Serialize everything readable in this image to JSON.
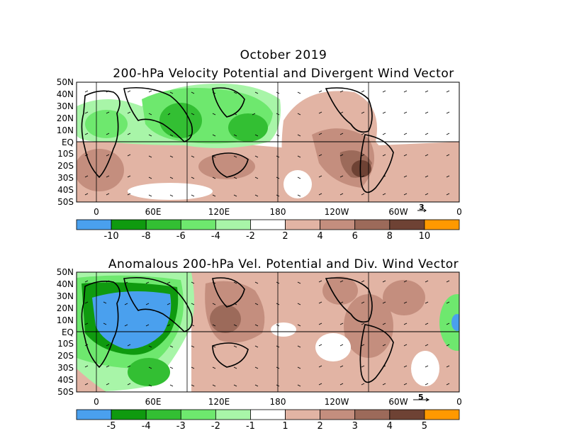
{
  "header": {
    "title": "October 2019"
  },
  "panels": [
    {
      "title": "200-hPa Velocity Potential and Divergent Wind Vector",
      "lat_labels": [
        "50N",
        "40N",
        "30N",
        "20N",
        "10N",
        "EQ",
        "10S",
        "20S",
        "30S",
        "40S",
        "50S"
      ],
      "lon_labels": [
        "0",
        "60E",
        "120E",
        "180",
        "120W",
        "60W",
        "0"
      ],
      "vector_scale": "3",
      "colorbar": {
        "labels": [
          "-10",
          "-8",
          "-6",
          "-4",
          "-2",
          "2",
          "4",
          "6",
          "8",
          "10"
        ],
        "colors": [
          "#4aa0ee",
          "#0f9a0f",
          "#33bf33",
          "#6ee86e",
          "#a8f5a8",
          "#ffffff",
          "#e2b4a4",
          "#c48e7e",
          "#9c6a5a",
          "#6e4234",
          "#ff9900"
        ]
      }
    },
    {
      "title": "Anomalous 200-hPa Vel. Potential and Div. Wind Vector",
      "lat_labels": [
        "50N",
        "40N",
        "30N",
        "20N",
        "10N",
        "EQ",
        "10S",
        "20S",
        "30S",
        "40S",
        "50S"
      ],
      "lon_labels": [
        "0",
        "60E",
        "120E",
        "180",
        "120W",
        "60W",
        "0"
      ],
      "vector_scale": "5",
      "colorbar": {
        "labels": [
          "-5",
          "-4",
          "-3",
          "-2",
          "-1",
          "1",
          "2",
          "3",
          "4",
          "5"
        ],
        "colors": [
          "#4aa0ee",
          "#0f9a0f",
          "#33bf33",
          "#6ee86e",
          "#a8f5a8",
          "#ffffff",
          "#e2b4a4",
          "#c48e7e",
          "#9c6a5a",
          "#6e4234",
          "#ff9900"
        ]
      }
    }
  ]
}
